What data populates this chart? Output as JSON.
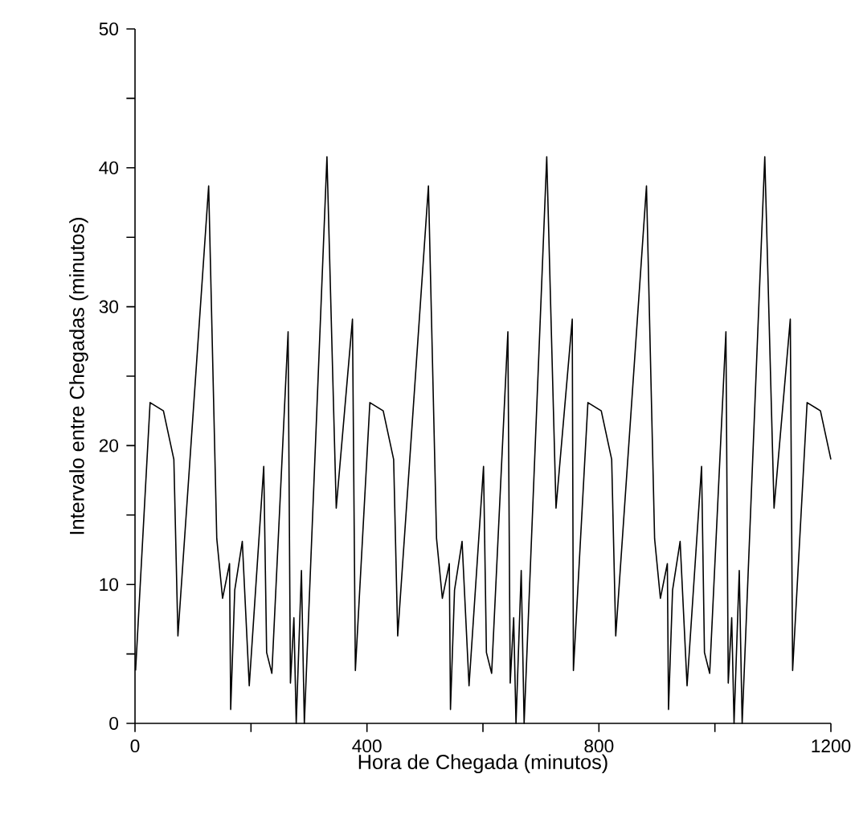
{
  "chart_data": {
    "type": "line",
    "xlabel": "Hora de Chegada (minutos)",
    "ylabel": "Intervalo entre Chegadas (minutos)",
    "x": [
      1,
      26,
      49,
      67,
      74,
      127,
      141,
      151,
      163,
      165,
      172,
      185,
      197,
      222,
      227,
      236,
      264,
      268,
      274,
      278,
      287,
      292,
      331,
      347,
      375,
      380,
      405,
      428,
      446,
      453,
      506,
      520,
      530,
      542,
      544,
      551,
      564,
      576,
      601,
      606,
      615,
      643,
      647,
      653,
      657,
      666,
      671,
      710,
      726,
      754,
      756,
      781,
      804,
      822,
      829,
      882,
      896,
      906,
      918,
      920,
      927,
      940,
      952,
      977,
      982,
      991,
      1019,
      1023,
      1029,
      1033,
      1042,
      1047,
      1086,
      1102,
      1130,
      1134,
      1159,
      1182,
      1200
    ],
    "values": [
      3.8,
      23.1,
      22.5,
      19.0,
      6.3,
      38.7,
      13.3,
      9.0,
      11.5,
      1.0,
      9.6,
      13.1,
      2.7,
      18.5,
      5.1,
      3.6,
      28.2,
      2.9,
      7.6,
      0,
      11.0,
      0,
      40.8,
      15.5,
      29.1,
      3.8,
      23.1,
      22.5,
      19.0,
      6.3,
      38.7,
      13.3,
      9.0,
      11.5,
      1.0,
      9.6,
      13.1,
      2.7,
      18.5,
      5.1,
      3.6,
      28.2,
      2.9,
      7.6,
      0,
      11.0,
      0,
      40.8,
      15.5,
      29.1,
      3.8,
      23.1,
      22.5,
      19.0,
      6.3,
      38.7,
      13.3,
      9.0,
      11.5,
      1.0,
      9.6,
      13.1,
      2.7,
      18.5,
      5.1,
      3.6,
      28.2,
      2.9,
      7.6,
      0,
      11.0,
      0,
      40.8,
      15.5,
      29.1,
      3.8,
      23.1,
      22.5,
      19.0
    ],
    "color": "#000000",
    "xlim": [
      0,
      1200
    ],
    "ylim": [
      0,
      50
    ],
    "xticks": [
      0,
      {
        "value": 200,
        "label": null
      },
      400,
      {
        "value": 600,
        "label": null
      },
      800,
      {
        "value": 1000,
        "label": null
      },
      1200
    ],
    "yticks": [
      0,
      {
        "value": 5,
        "label": null
      },
      10,
      {
        "value": 15,
        "label": null
      },
      20,
      {
        "value": 25,
        "label": null
      },
      30,
      {
        "value": 35,
        "label": null
      },
      40,
      {
        "value": 45,
        "label": null
      },
      50
    ]
  }
}
